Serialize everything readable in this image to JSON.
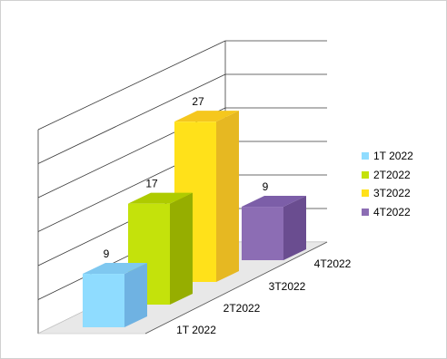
{
  "chart_data": {
    "type": "bar",
    "categories": [
      "1T 2022",
      "2T2022",
      "3T2022",
      "4T2022"
    ],
    "values": [
      9,
      17,
      27,
      9
    ],
    "data_labels": [
      "9",
      "17",
      "27",
      "9"
    ],
    "ylim": [
      0,
      30
    ],
    "gridlines": true,
    "legend": "right",
    "style": "3d-perspective",
    "colors": [
      "#8fdcff",
      "#c4e20b",
      "#ffe11a",
      "#8c6db4"
    ],
    "shade_colors": {
      "side": [
        "#6fb2e2",
        "#96ae00",
        "#e6b822",
        "#6a4d90"
      ],
      "top": [
        "#7fc8f0",
        "#aecb00",
        "#f5c71e",
        "#7c5ea8"
      ]
    }
  }
}
